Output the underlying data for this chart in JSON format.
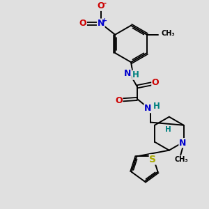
{
  "background_color": "#e0e0e0",
  "bond_color": "#000000",
  "atom_colors": {
    "N": "#0000cc",
    "O": "#cc0000",
    "S": "#aaaa00",
    "H": "#008080",
    "C": "#000000"
  },
  "fig_w": 3.0,
  "fig_h": 3.0,
  "dpi": 100,
  "xlim": [
    0,
    10
  ],
  "ylim": [
    0,
    10
  ]
}
